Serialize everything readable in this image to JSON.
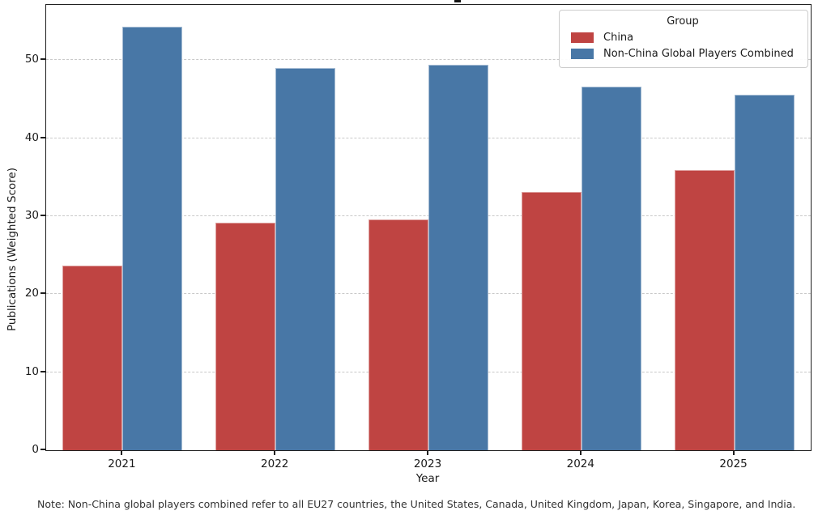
{
  "note": "Note: Non-China global players combined refer to all EU27 countries, the United States, Canada, United Kingdom, Japan, Korea, Singapore, and India.",
  "chart_data": {
    "type": "bar",
    "title": "",
    "xlabel": "Year",
    "ylabel": "Publications (Weighted Score)",
    "categories": [
      "2021",
      "2022",
      "2023",
      "2024",
      "2025"
    ],
    "series": [
      {
        "name": "China",
        "color": "#bf4442",
        "values": [
          23.7,
          29.2,
          29.6,
          33.1,
          35.9
        ]
      },
      {
        "name": "Non-China Global Players Combined",
        "color": "#4877a6",
        "values": [
          54.3,
          49.0,
          49.4,
          46.6,
          45.6
        ]
      }
    ],
    "ylim": [
      0,
      57.1
    ],
    "yticks": [
      0,
      10,
      20,
      30,
      40,
      50
    ],
    "grid": "horizontal-dashed",
    "legend_title": "Group",
    "legend_position": "upper-right"
  }
}
